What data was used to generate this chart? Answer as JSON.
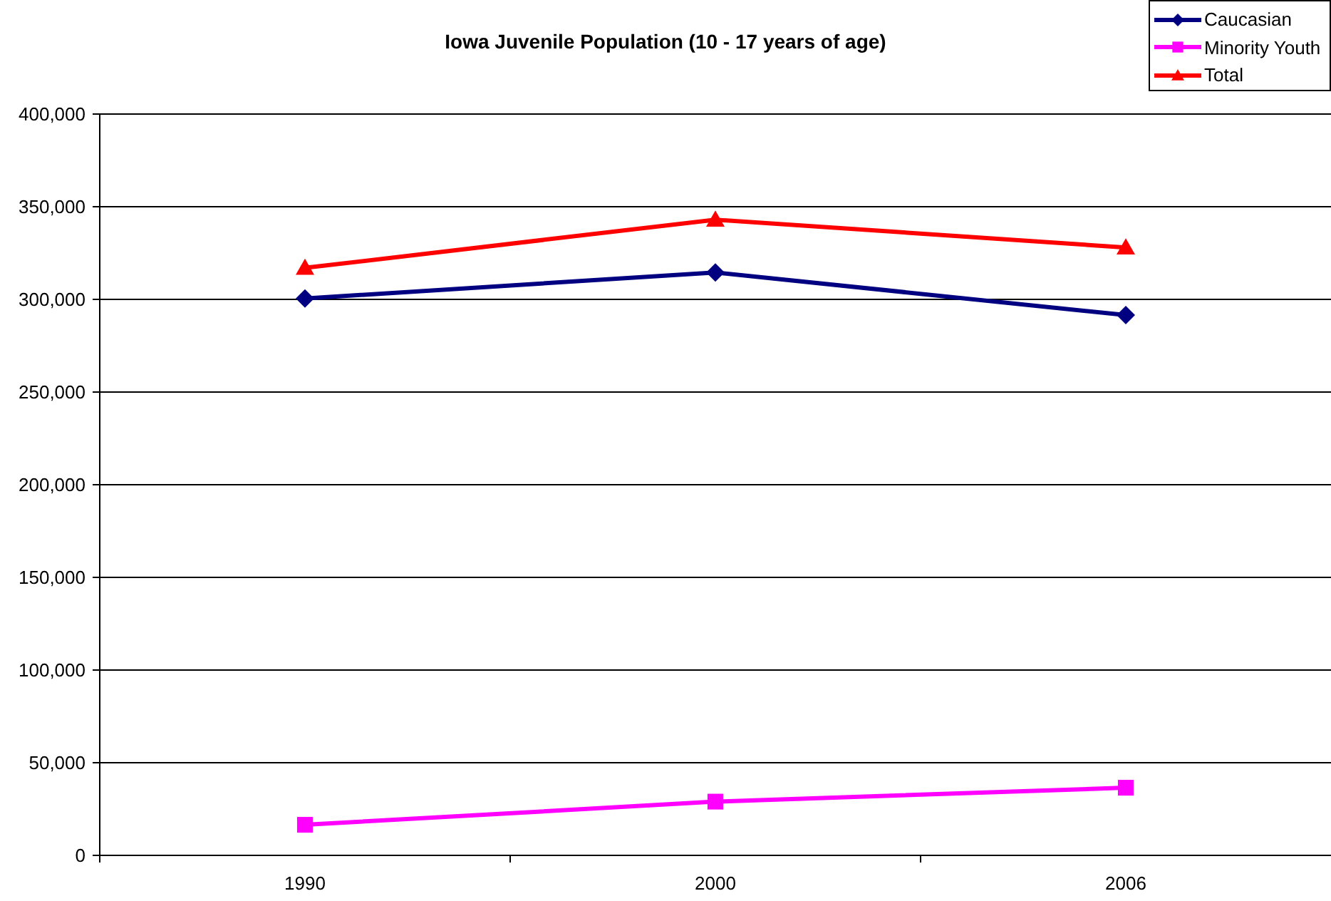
{
  "chart_data": {
    "type": "line",
    "title": "Iowa Juvenile Population (10 - 17 years of age)",
    "categories": [
      "1990",
      "2000",
      "2006"
    ],
    "series": [
      {
        "name": "Caucasian",
        "color": "#000080",
        "marker": "diamond",
        "values": [
          300500,
          314500,
          291500
        ]
      },
      {
        "name": "Minority Youth",
        "color": "#ff00ff",
        "marker": "square",
        "values": [
          16500,
          29000,
          36500
        ]
      },
      {
        "name": "Total",
        "color": "#ff0000",
        "marker": "triangle",
        "values": [
          317000,
          343000,
          328000
        ]
      }
    ],
    "ylim": [
      0,
      400000
    ],
    "yticks": [
      0,
      {
        "value": 50000,
        "label": "50,000"
      },
      {
        "value": 100000,
        "label": "100,000"
      },
      {
        "value": 150000,
        "label": "150,000"
      },
      {
        "value": 200000,
        "label": "200,000"
      },
      {
        "value": 250000,
        "label": "250,000"
      },
      {
        "value": 300000,
        "label": "300,000"
      },
      {
        "value": 350000,
        "label": "350,000"
      },
      {
        "value": 400000,
        "label": "400,000"
      }
    ],
    "grid": "y",
    "legend": "top right",
    "line_style": "solid"
  }
}
